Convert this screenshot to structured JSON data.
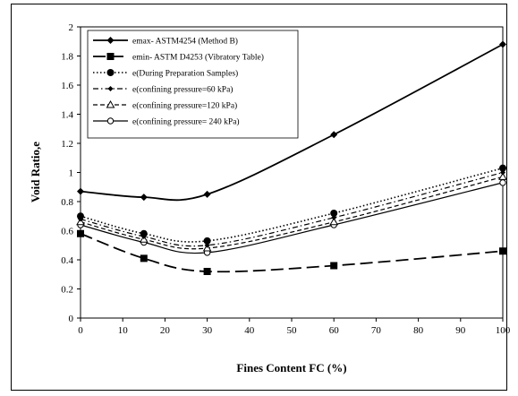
{
  "chart_data": {
    "type": "line",
    "xlabel": "Fines Content FC (%)",
    "ylabel": "Void Ratio,e",
    "xlim": [
      0,
      100
    ],
    "ylim": [
      0,
      2
    ],
    "x_ticks": [
      "0",
      "10",
      "20",
      "30",
      "40",
      "50",
      "60",
      "70",
      "80",
      "90",
      "100"
    ],
    "y_ticks": [
      "0",
      "0.2",
      "0.4",
      "0.6",
      "0.8",
      "1",
      "1.2",
      "1.4",
      "1.6",
      "1.8",
      "2"
    ],
    "grid": false,
    "legend_position": "top-left",
    "series": [
      {
        "name": "emax- ASTM4254 (Method B)",
        "x": [
          0,
          15,
          30,
          60,
          100
        ],
        "values": [
          0.87,
          0.83,
          0.85,
          1.26,
          1.88
        ],
        "marker": "diamond",
        "dash": "solid",
        "stroke_width": 1.8
      },
      {
        "name": "emin- ASTM D4253 (Vibratory Table)",
        "x": [
          0,
          15,
          30,
          60,
          100
        ],
        "values": [
          0.58,
          0.41,
          0.32,
          0.36,
          0.46
        ],
        "marker": "square",
        "dash": "long-dash",
        "stroke_width": 1.8
      },
      {
        "name": "e(During Preparation Samples)",
        "x": [
          0,
          15,
          30,
          60,
          100
        ],
        "values": [
          0.7,
          0.58,
          0.53,
          0.72,
          1.03
        ],
        "marker": "circle",
        "dash": "dotted",
        "stroke_width": 1.6
      },
      {
        "name": "e(confining pressure=60 kPa)",
        "x": [
          0,
          15,
          30,
          60,
          100
        ],
        "values": [
          0.68,
          0.56,
          0.5,
          0.69,
          1.0
        ],
        "marker": "small-diamond",
        "dash": "dash-dot",
        "stroke_width": 1.2
      },
      {
        "name": "e(confining pressure=120 kPa)",
        "x": [
          0,
          15,
          30,
          60,
          100
        ],
        "values": [
          0.66,
          0.54,
          0.48,
          0.66,
          0.97
        ],
        "marker": "open-triangle",
        "dash": "dashed",
        "stroke_width": 1.2
      },
      {
        "name": "e(confining pressure= 240 kPa)",
        "x": [
          0,
          15,
          30,
          60,
          100
        ],
        "values": [
          0.64,
          0.52,
          0.45,
          0.64,
          0.93
        ],
        "marker": "open-circle",
        "dash": "solid",
        "stroke_width": 1.2
      }
    ]
  }
}
